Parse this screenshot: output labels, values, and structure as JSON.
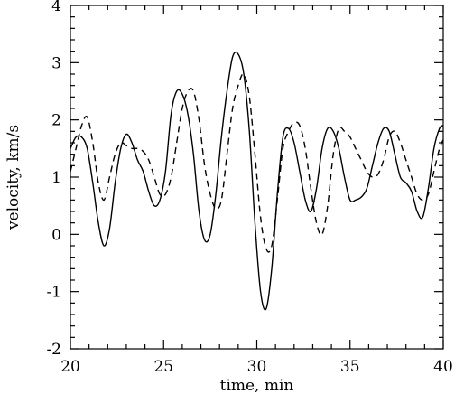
{
  "chart_data": {
    "type": "line",
    "title": "",
    "xlabel": "time, min",
    "ylabel": "velocity, km/s",
    "xlim": [
      20,
      40
    ],
    "ylim": [
      -2,
      4
    ],
    "xticks": [
      20,
      25,
      30,
      35,
      40
    ],
    "yticks": [
      -2,
      -1,
      0,
      1,
      2,
      3,
      4
    ],
    "xtick_labels": [
      "20",
      "25",
      "30",
      "35",
      "40"
    ],
    "ytick_labels": [
      "-2",
      "-1",
      "0",
      "1",
      "2",
      "3",
      "4"
    ],
    "grid": false,
    "legend": "none",
    "series": [
      {
        "style": "solid",
        "x": [
          20.0,
          20.3,
          20.6,
          20.9,
          21.2,
          21.5,
          21.8,
          22.1,
          22.4,
          22.7,
          23.0,
          23.3,
          23.6,
          23.9,
          24.2,
          24.5,
          24.8,
          25.1,
          25.4,
          25.7,
          26.0,
          26.3,
          26.6,
          26.9,
          27.2,
          27.5,
          27.8,
          28.1,
          28.4,
          28.7,
          29.0,
          29.3,
          29.6,
          29.9,
          30.2,
          30.5,
          30.8,
          31.1,
          31.4,
          31.7,
          32.0,
          32.3,
          32.6,
          32.9,
          33.2,
          33.5,
          33.8,
          34.1,
          34.4,
          34.7,
          35.0,
          35.3,
          35.6,
          35.9,
          36.2,
          36.5,
          36.8,
          37.1,
          37.4,
          37.7,
          38.0,
          38.3,
          38.6,
          38.9,
          39.2,
          39.5,
          39.8,
          40.0
        ],
        "y": [
          1.5,
          1.7,
          1.7,
          1.5,
          0.9,
          0.2,
          -0.2,
          0.1,
          0.9,
          1.5,
          1.75,
          1.6,
          1.3,
          1.1,
          0.75,
          0.5,
          0.6,
          1.1,
          2.1,
          2.5,
          2.45,
          2.1,
          1.4,
          0.4,
          -0.1,
          0.0,
          0.7,
          1.7,
          2.5,
          3.1,
          3.15,
          2.8,
          1.8,
          0.2,
          -1.0,
          -1.3,
          -0.6,
          0.7,
          1.7,
          1.85,
          1.6,
          1.1,
          0.6,
          0.4,
          0.8,
          1.5,
          1.85,
          1.8,
          1.5,
          1.0,
          0.6,
          0.6,
          0.65,
          0.8,
          1.2,
          1.6,
          1.85,
          1.8,
          1.4,
          1.0,
          0.9,
          0.75,
          0.4,
          0.3,
          0.8,
          1.5,
          1.85,
          1.9
        ]
      },
      {
        "style": "dashed",
        "x": [
          20.0,
          20.3,
          20.6,
          20.9,
          21.2,
          21.5,
          21.8,
          22.1,
          22.4,
          22.7,
          23.0,
          23.3,
          23.6,
          23.9,
          24.2,
          24.5,
          24.8,
          25.1,
          25.4,
          25.7,
          26.0,
          26.3,
          26.6,
          26.9,
          27.2,
          27.5,
          27.8,
          28.1,
          28.4,
          28.7,
          29.0,
          29.3,
          29.6,
          29.9,
          30.2,
          30.5,
          30.8,
          31.1,
          31.4,
          31.7,
          32.0,
          32.3,
          32.6,
          32.9,
          33.2,
          33.5,
          33.8,
          34.1,
          34.4,
          34.7,
          35.0,
          35.3,
          35.6,
          35.9,
          36.2,
          36.5,
          36.8,
          37.1,
          37.4,
          37.7,
          38.0,
          38.3,
          38.6,
          38.9,
          39.2,
          39.5,
          39.8,
          40.0
        ],
        "y": [
          1.1,
          1.5,
          1.9,
          2.05,
          1.6,
          0.9,
          0.6,
          1.0,
          1.4,
          1.6,
          1.55,
          1.5,
          1.5,
          1.45,
          1.3,
          1.0,
          0.7,
          0.7,
          1.0,
          1.6,
          2.2,
          2.5,
          2.5,
          2.0,
          1.2,
          0.7,
          0.45,
          0.6,
          1.4,
          2.2,
          2.6,
          2.8,
          2.4,
          1.4,
          0.3,
          -0.25,
          -0.2,
          0.6,
          1.5,
          1.8,
          1.95,
          1.9,
          1.5,
          0.8,
          0.2,
          0.0,
          0.5,
          1.4,
          1.85,
          1.8,
          1.7,
          1.5,
          1.3,
          1.1,
          1.0,
          1.05,
          1.3,
          1.7,
          1.8,
          1.6,
          1.3,
          1.0,
          0.7,
          0.6,
          0.7,
          1.1,
          1.5,
          1.65
        ]
      }
    ]
  }
}
